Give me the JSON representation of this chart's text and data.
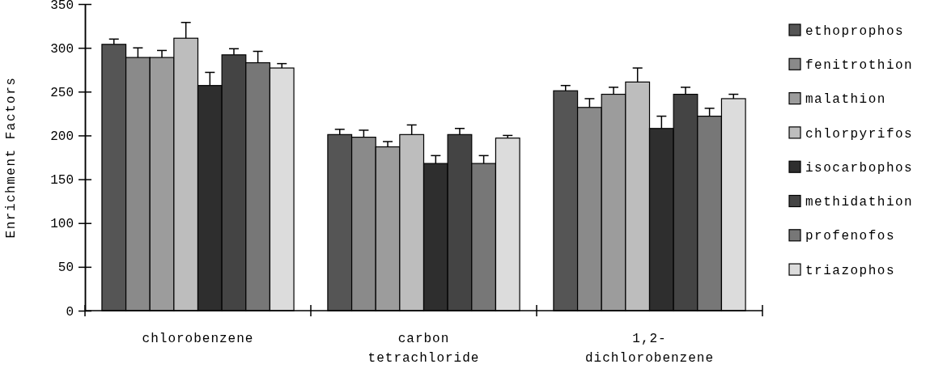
{
  "chart_data": {
    "type": "bar",
    "ylabel": "Enrichment Factors",
    "categories": [
      "chlorobenzene",
      "carbon tetrachloride",
      "1,2-dichlorobenzene"
    ],
    "ylim": [
      0,
      350
    ],
    "yticks": [
      0,
      50,
      100,
      150,
      200,
      250,
      300,
      350
    ],
    "legend": "right",
    "grid": false,
    "series": [
      {
        "name": "ethoprophos",
        "color": "#555555",
        "values": [
          304,
          201,
          251
        ],
        "errors": [
          6,
          6,
          6
        ]
      },
      {
        "name": "fenitrothion",
        "color": "#8a8a8a",
        "values": [
          289,
          198,
          232
        ],
        "errors": [
          11,
          8,
          10
        ]
      },
      {
        "name": "malathion",
        "color": "#9c9c9c",
        "values": [
          289,
          187,
          247
        ],
        "errors": [
          8,
          6,
          8
        ]
      },
      {
        "name": "chlorpyrifos",
        "color": "#bdbdbd",
        "values": [
          311,
          201,
          261
        ],
        "errors": [
          18,
          11,
          16
        ]
      },
      {
        "name": "isocarbophos",
        "color": "#2e2e2e",
        "values": [
          257,
          168,
          208
        ],
        "errors": [
          15,
          9,
          14
        ]
      },
      {
        "name": "methidathion",
        "color": "#444444",
        "values": [
          292,
          201,
          247
        ],
        "errors": [
          7,
          7,
          8
        ]
      },
      {
        "name": "profenofos",
        "color": "#777777",
        "values": [
          283,
          168,
          222
        ],
        "errors": [
          13,
          9,
          9
        ]
      },
      {
        "name": "triazophos",
        "color": "#dcdcdc",
        "values": [
          277,
          197,
          242
        ],
        "errors": [
          5,
          3,
          5
        ]
      }
    ]
  }
}
